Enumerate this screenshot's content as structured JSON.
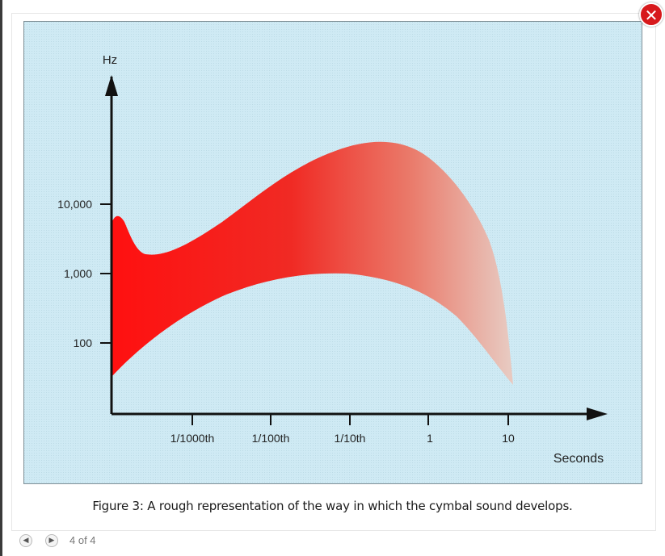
{
  "lightbox": {
    "close_icon": "close-icon",
    "counter": "4 of 4",
    "prev_icon": "arrow-left-icon",
    "next_icon": "arrow-right-icon"
  },
  "figure": {
    "caption": "Figure 3: A rough representation of the way in which the cymbal sound develops.",
    "y_axis_label": "Hz",
    "x_axis_label": "Seconds",
    "y_ticks": [
      "10,000",
      "1,000",
      "100"
    ],
    "x_ticks": [
      "1/1000th",
      "1/100th",
      "1/10th",
      "1",
      "10"
    ],
    "band_color": "#ff1e1e",
    "background_color": "#cde9f3"
  }
}
